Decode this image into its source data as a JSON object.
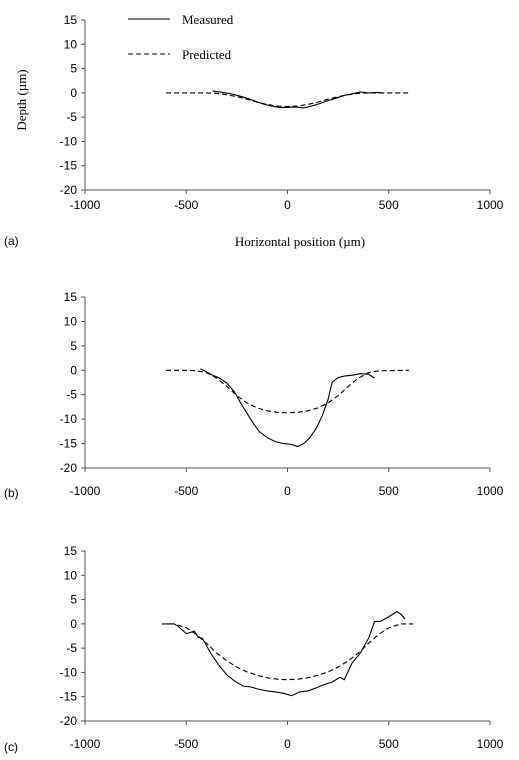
{
  "chart_data": [
    {
      "type": "line",
      "panel_label": "(a)",
      "xlabel": "Horizontal position (µm)",
      "ylabel": "Depth (µm)",
      "xlim": [
        -1000,
        1000
      ],
      "ylim": [
        -20,
        15
      ],
      "xticks": [
        -1000,
        -500,
        0,
        500,
        1000
      ],
      "yticks": [
        15,
        10,
        5,
        0,
        -5,
        -10,
        -15,
        -20
      ],
      "legend": {
        "placement": "top-left",
        "entries": [
          "Measured",
          "Predicted"
        ]
      },
      "series": [
        {
          "name": "Measured",
          "style": "solid",
          "x": [
            -370,
            -320,
            -280,
            -240,
            -200,
            -160,
            -120,
            -80,
            -40,
            0,
            40,
            80,
            120,
            160,
            200,
            240,
            280,
            320,
            360,
            400,
            440,
            470
          ],
          "y": [
            0.4,
            0.1,
            -0.2,
            -0.6,
            -1.1,
            -1.7,
            -2.3,
            -2.7,
            -3.0,
            -3.0,
            -2.9,
            -3.1,
            -2.7,
            -2.2,
            -1.6,
            -1.1,
            -0.5,
            -0.2,
            0.2,
            0.0,
            0.1,
            0.0
          ]
        },
        {
          "name": "Predicted",
          "style": "dashed",
          "x": [
            -600,
            -500,
            -400,
            -350,
            -300,
            -250,
            -200,
            -150,
            -100,
            -50,
            0,
            50,
            100,
            150,
            200,
            250,
            300,
            350,
            400,
            500,
            600
          ],
          "y": [
            0,
            0,
            0,
            -0.1,
            -0.4,
            -0.8,
            -1.3,
            -1.9,
            -2.4,
            -2.7,
            -2.8,
            -2.7,
            -2.4,
            -1.9,
            -1.3,
            -0.8,
            -0.4,
            -0.1,
            0,
            0,
            0
          ]
        }
      ]
    },
    {
      "type": "line",
      "panel_label": "(b)",
      "xlim": [
        -1000,
        1000
      ],
      "ylim": [
        -20,
        15
      ],
      "xticks": [
        -1000,
        -500,
        0,
        500,
        1000
      ],
      "yticks": [
        15,
        10,
        5,
        0,
        -5,
        -10,
        -15,
        -20
      ],
      "series": [
        {
          "name": "Measured",
          "style": "solid",
          "x": [
            -430,
            -400,
            -370,
            -340,
            -300,
            -260,
            -230,
            -200,
            -170,
            -140,
            -100,
            -60,
            -20,
            20,
            50,
            80,
            110,
            140,
            170,
            200,
            220,
            250,
            280,
            320,
            360,
            400,
            430
          ],
          "y": [
            0.3,
            -0.3,
            -1.0,
            -1.5,
            -2.6,
            -4.5,
            -6.8,
            -8.8,
            -10.8,
            -12.5,
            -13.8,
            -14.6,
            -15.0,
            -15.2,
            -15.6,
            -15.0,
            -13.8,
            -12.0,
            -9.5,
            -6.0,
            -2.5,
            -1.5,
            -1.2,
            -1.0,
            -0.7,
            -0.8,
            -1.6
          ]
        },
        {
          "name": "Predicted",
          "style": "dashed",
          "x": [
            -600,
            -500,
            -450,
            -400,
            -350,
            -300,
            -250,
            -200,
            -150,
            -100,
            -50,
            0,
            50,
            100,
            150,
            200,
            250,
            300,
            350,
            400,
            450,
            600
          ],
          "y": [
            0,
            0,
            -0.1,
            -0.5,
            -1.6,
            -3.3,
            -5.2,
            -6.7,
            -7.7,
            -8.3,
            -8.6,
            -8.7,
            -8.6,
            -8.3,
            -7.7,
            -6.7,
            -5.2,
            -3.3,
            -1.6,
            -0.5,
            -0.1,
            0
          ]
        }
      ]
    },
    {
      "type": "line",
      "panel_label": "(c)",
      "xlim": [
        -1000,
        1000
      ],
      "ylim": [
        -20,
        15
      ],
      "xticks": [
        -1000,
        -500,
        0,
        500,
        1000
      ],
      "yticks": [
        15,
        10,
        5,
        0,
        -5,
        -10,
        -15,
        -20
      ],
      "series": [
        {
          "name": "Measured",
          "style": "solid",
          "x": [
            -600,
            -560,
            -540,
            -500,
            -460,
            -440,
            -420,
            -380,
            -340,
            -300,
            -260,
            -220,
            -180,
            -140,
            -100,
            -60,
            -20,
            20,
            60,
            100,
            140,
            180,
            220,
            260,
            280,
            320,
            360,
            400,
            430,
            460,
            500,
            540,
            560,
            580
          ],
          "y": [
            0,
            0,
            -0.5,
            -2.0,
            -1.5,
            -2.8,
            -3.0,
            -6.0,
            -8.5,
            -10.5,
            -11.8,
            -12.8,
            -13.0,
            -13.5,
            -13.8,
            -14.0,
            -14.3,
            -14.8,
            -14.0,
            -13.8,
            -13.2,
            -12.5,
            -12.0,
            -11.0,
            -11.5,
            -8.0,
            -6.0,
            -3.0,
            0.5,
            0.5,
            1.5,
            2.5,
            2.0,
            1.0
          ]
        },
        {
          "name": "Predicted",
          "style": "dashed",
          "x": [
            -620,
            -560,
            -500,
            -450,
            -400,
            -350,
            -300,
            -250,
            -200,
            -150,
            -100,
            -50,
            0,
            50,
            100,
            150,
            200,
            250,
            300,
            350,
            400,
            450,
            500,
            560,
            620
          ],
          "y": [
            0,
            0,
            -0.8,
            -2.2,
            -4.0,
            -6.0,
            -7.6,
            -8.9,
            -9.9,
            -10.6,
            -11.1,
            -11.4,
            -11.5,
            -11.4,
            -11.1,
            -10.6,
            -9.9,
            -8.9,
            -7.6,
            -6.0,
            -4.0,
            -2.2,
            -0.8,
            0,
            0
          ]
        }
      ]
    }
  ]
}
